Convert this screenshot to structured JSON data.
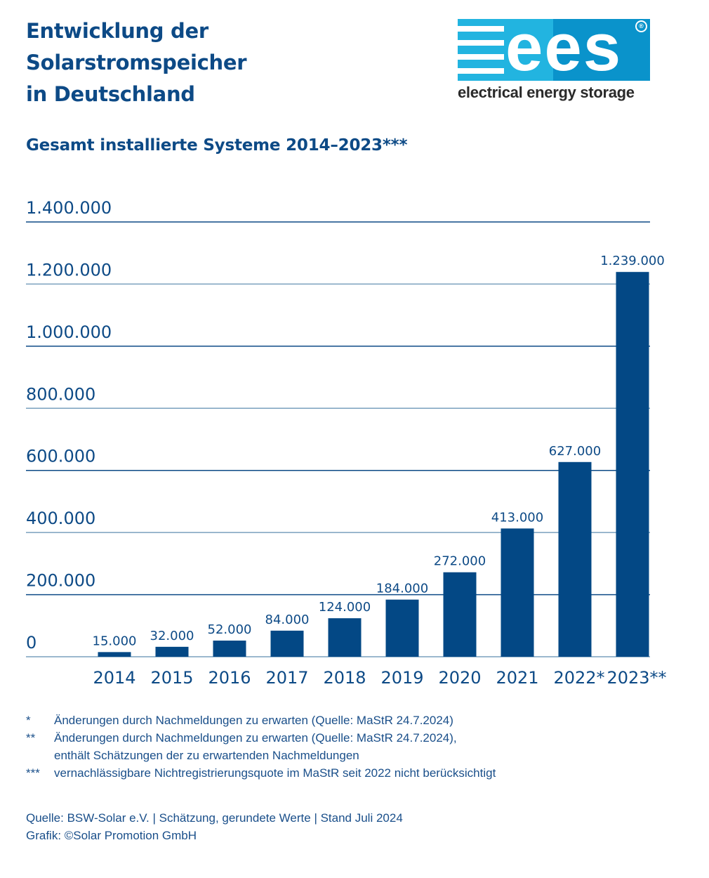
{
  "header": {
    "title_lines": [
      "Entwicklung der",
      "Solarstromspeicher",
      "in Deutschland"
    ],
    "subtitle": "Gesamt installierte Systeme 2014–2023***"
  },
  "logo": {
    "letters": "ees",
    "registered": "®",
    "tagline": "electrical energy storage",
    "colors": {
      "light": "#22b4e0",
      "dark": "#0a93cb"
    }
  },
  "colors": {
    "bar": "#034885",
    "text": "#0d4a86",
    "grid_dark": "#0d4a86",
    "grid_light": "#7aa0be"
  },
  "chart_data": {
    "type": "bar",
    "title": "Gesamt installierte Systeme 2014–2023***",
    "xlabel": "",
    "ylabel": "",
    "categories": [
      "2014",
      "2015",
      "2016",
      "2017",
      "2018",
      "2019",
      "2020",
      "2021",
      "2022*",
      "2023**"
    ],
    "values": [
      15000,
      32000,
      52000,
      84000,
      124000,
      184000,
      272000,
      413000,
      627000,
      1239000
    ],
    "value_labels": [
      "15.000",
      "32.000",
      "52.000",
      "84.000",
      "124.000",
      "184.000",
      "272.000",
      "413.000",
      "627.000",
      "1.239.000"
    ],
    "ylim": [
      0,
      1400000
    ],
    "yticks": [
      0,
      200000,
      400000,
      600000,
      800000,
      1000000,
      1200000,
      1400000
    ],
    "ytick_labels": [
      "0",
      "200.000",
      "400.000",
      "600.000",
      "800.000",
      "1.000.000",
      "1.200.000",
      "1.400.000"
    ],
    "grid": true,
    "legend": "none"
  },
  "footnotes": [
    {
      "mark": "*",
      "lines": [
        "Änderungen durch Nachmeldungen zu erwarten (Quelle: MaStR 24.7.2024)"
      ]
    },
    {
      "mark": "**",
      "lines": [
        "Änderungen durch Nachmeldungen zu erwarten (Quelle: MaStR 24.7.2024),",
        "enthält Schätzungen der zu erwartenden Nachmeldungen"
      ]
    },
    {
      "mark": "***",
      "lines": [
        "vernachlässigbare Nichtregistrierungsquote im MaStR seit 2022 nicht berücksichtigt"
      ]
    }
  ],
  "source": {
    "line1": "Quelle: BSW-Solar e.V. | Schätzung, gerundete Werte | Stand Juli 2024",
    "line2": "Grafik: ©Solar Promotion GmbH"
  }
}
